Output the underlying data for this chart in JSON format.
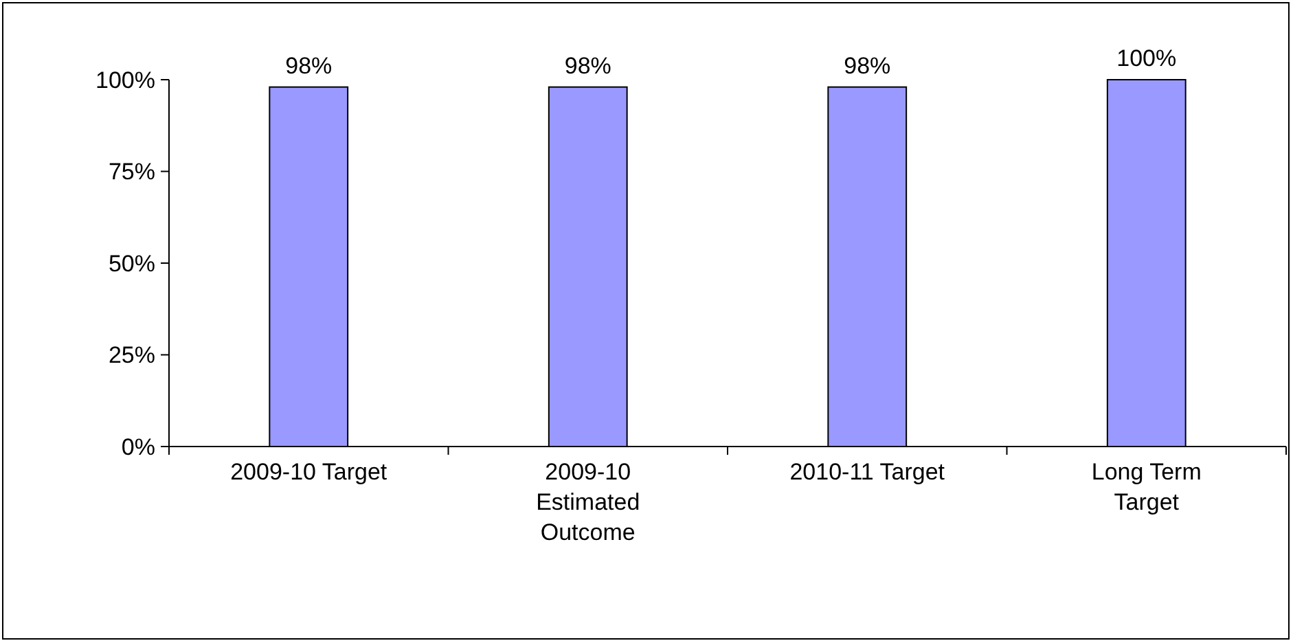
{
  "chart_data": {
    "type": "bar",
    "categories": [
      "2009-10 Target",
      "2009-10 Estimated Outcome",
      "2010-11 Target",
      "Long Term Target"
    ],
    "values": [
      98,
      98,
      98,
      100
    ],
    "value_labels": [
      "98%",
      "98%",
      "98%",
      "100%"
    ],
    "color": "#9999ff",
    "ylim": [
      0,
      100
    ],
    "yticks": [
      {
        "value": 0,
        "label": "0%"
      },
      {
        "value": 25,
        "label": "25%"
      },
      {
        "value": 50,
        "label": "50%"
      },
      {
        "value": 75,
        "label": "75%"
      },
      {
        "value": 100,
        "label": "100%"
      }
    ],
    "grid": false
  }
}
